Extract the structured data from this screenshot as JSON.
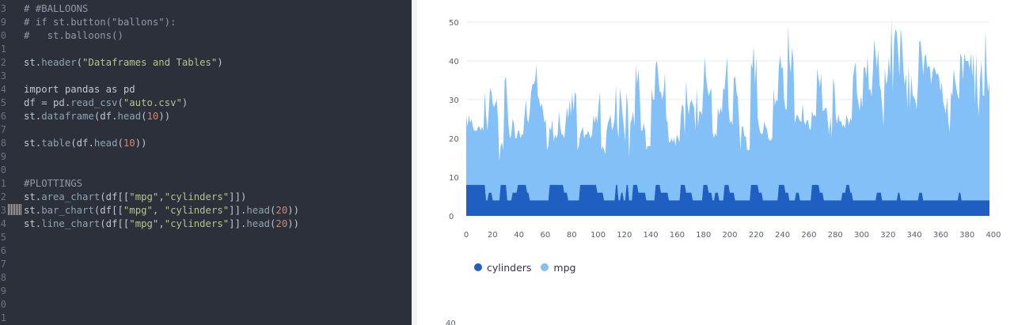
{
  "editor": {
    "line_numbers": [
      "3",
      "9",
      "0",
      "1",
      "2",
      "3",
      "4",
      "5",
      "6",
      "7",
      "8",
      "9",
      "0",
      "1",
      "2",
      "3",
      "4",
      "5",
      "6",
      "7",
      "8",
      "9",
      "0",
      "1"
    ],
    "lines": [
      [
        {
          "t": "# #BALLOONS",
          "c": "comment"
        }
      ],
      [
        {
          "t": "# if st.button(\"ballons\"):",
          "c": "comment"
        }
      ],
      [
        {
          "t": "#   st.balloons()",
          "c": "comment"
        }
      ],
      [],
      [
        {
          "t": "st.",
          "c": "plain"
        },
        {
          "t": "header",
          "c": "fn"
        },
        {
          "t": "(",
          "c": "plain"
        },
        {
          "t": "\"Dataframes and Tables\"",
          "c": "str"
        },
        {
          "t": ")",
          "c": "plain"
        }
      ],
      [],
      [
        {
          "t": "import pandas as pd",
          "c": "plain"
        }
      ],
      [
        {
          "t": "df = pd.",
          "c": "plain"
        },
        {
          "t": "read_csv",
          "c": "fn"
        },
        {
          "t": "(",
          "c": "plain"
        },
        {
          "t": "\"auto.csv\"",
          "c": "str"
        },
        {
          "t": ")",
          "c": "plain"
        }
      ],
      [
        {
          "t": "st.",
          "c": "plain"
        },
        {
          "t": "dataframe",
          "c": "fn"
        },
        {
          "t": "(df.",
          "c": "plain"
        },
        {
          "t": "head",
          "c": "fn"
        },
        {
          "t": "(",
          "c": "plain"
        },
        {
          "t": "10",
          "c": "num"
        },
        {
          "t": "))",
          "c": "plain"
        }
      ],
      [],
      [
        {
          "t": "st.",
          "c": "plain"
        },
        {
          "t": "table",
          "c": "fn"
        },
        {
          "t": "(df.",
          "c": "plain"
        },
        {
          "t": "head",
          "c": "fn"
        },
        {
          "t": "(",
          "c": "plain"
        },
        {
          "t": "10",
          "c": "num"
        },
        {
          "t": "))",
          "c": "plain"
        }
      ],
      [],
      [],
      [
        {
          "t": "#PLOTTINGS",
          "c": "comment"
        }
      ],
      [
        {
          "t": "st.",
          "c": "plain"
        },
        {
          "t": "area_chart",
          "c": "fn"
        },
        {
          "t": "(df[[",
          "c": "plain"
        },
        {
          "t": "\"mpg\"",
          "c": "str"
        },
        {
          "t": ",",
          "c": "plain"
        },
        {
          "t": "\"cylinders\"",
          "c": "str"
        },
        {
          "t": "]])",
          "c": "plain"
        }
      ],
      [
        {
          "t": "st.",
          "c": "plain"
        },
        {
          "t": "bar_chart",
          "c": "fn"
        },
        {
          "t": "(df[[",
          "c": "plain"
        },
        {
          "t": "\"mpg\"",
          "c": "str"
        },
        {
          "t": ", ",
          "c": "plain"
        },
        {
          "t": "\"cylinders\"",
          "c": "str"
        },
        {
          "t": "]].",
          "c": "plain"
        },
        {
          "t": "head",
          "c": "fn"
        },
        {
          "t": "(",
          "c": "plain"
        },
        {
          "t": "20",
          "c": "num"
        },
        {
          "t": "))",
          "c": "plain"
        }
      ],
      [
        {
          "t": "st.",
          "c": "plain"
        },
        {
          "t": "line_chart",
          "c": "fn"
        },
        {
          "t": "(df[[",
          "c": "plain"
        },
        {
          "t": "\"mpg\"",
          "c": "str"
        },
        {
          "t": ",",
          "c": "plain"
        },
        {
          "t": "\"cylinders\"",
          "c": "str"
        },
        {
          "t": "]].",
          "c": "plain"
        },
        {
          "t": "head",
          "c": "fn"
        },
        {
          "t": "(",
          "c": "plain"
        },
        {
          "t": "20",
          "c": "num"
        },
        {
          "t": "))",
          "c": "plain"
        }
      ]
    ]
  },
  "colors": {
    "cylinders": "#1f5fc2",
    "mpg": "#83c0f7",
    "gridline": "#e6e9ef"
  },
  "chart_data": {
    "type": "area",
    "stacked": true,
    "xlim": [
      0,
      397
    ],
    "ylim": [
      0,
      50
    ],
    "xticks": [
      0,
      20,
      40,
      60,
      80,
      100,
      120,
      140,
      160,
      180,
      200,
      220,
      240,
      260,
      280,
      300,
      320,
      340,
      360,
      380,
      400
    ],
    "yticks": [
      0,
      10,
      20,
      30,
      40,
      50
    ],
    "grid": true,
    "legend_position": "bottom-left",
    "series": [
      {
        "name": "cylinders",
        "key": "cylinders",
        "values": [
          8,
          8,
          8,
          8,
          8,
          8,
          8,
          8,
          8,
          8,
          8,
          8,
          8,
          8,
          8,
          4,
          4,
          6,
          6,
          6,
          4,
          4,
          4,
          4,
          4,
          4,
          8,
          8,
          8,
          8,
          8,
          4,
          4,
          4,
          4,
          6,
          6,
          6,
          6,
          8,
          8,
          8,
          8,
          8,
          8,
          8,
          6,
          6,
          4,
          4,
          4,
          4,
          4,
          4,
          4,
          4,
          4,
          4,
          4,
          4,
          4,
          4,
          4,
          8,
          8,
          8,
          8,
          8,
          8,
          8,
          8,
          8,
          8,
          8,
          6,
          6,
          6,
          4,
          4,
          4,
          4,
          4,
          4,
          4,
          4,
          4,
          8,
          8,
          8,
          8,
          8,
          8,
          8,
          8,
          8,
          8,
          8,
          8,
          8,
          6,
          6,
          6,
          6,
          6,
          4,
          4,
          4,
          4,
          4,
          4,
          4,
          4,
          4,
          8,
          8,
          4,
          4,
          6,
          6,
          4,
          4,
          8,
          8,
          4,
          4,
          4,
          8,
          8,
          8,
          8,
          6,
          6,
          6,
          6,
          6,
          6,
          4,
          4,
          4,
          4,
          4,
          4,
          4,
          8,
          8,
          8,
          8,
          6,
          6,
          6,
          6,
          6,
          6,
          4,
          4,
          4,
          4,
          4,
          4,
          4,
          4,
          4,
          8,
          8,
          8,
          8,
          6,
          6,
          6,
          6,
          6,
          4,
          4,
          4,
          4,
          4,
          4,
          4,
          4,
          8,
          8,
          8,
          8,
          6,
          6,
          6,
          4,
          4,
          6,
          6,
          6,
          4,
          4,
          4,
          4,
          8,
          8,
          8,
          8,
          6,
          6,
          6,
          6,
          4,
          4,
          4,
          4,
          4,
          4,
          4,
          4,
          4,
          4,
          4,
          4,
          8,
          8,
          8,
          8,
          8,
          8,
          6,
          6,
          6,
          4,
          4,
          4,
          4,
          4,
          4,
          4,
          4,
          4,
          4,
          4,
          4,
          8,
          8,
          8,
          8,
          8,
          6,
          6,
          6,
          4,
          4,
          4,
          4,
          4,
          6,
          6,
          6,
          4,
          4,
          4,
          4,
          4,
          4,
          4,
          4,
          4,
          8,
          8,
          8,
          8,
          8,
          8,
          6,
          6,
          6,
          4,
          4,
          4,
          4,
          4,
          4,
          4,
          4,
          4,
          4,
          4,
          4,
          4,
          4,
          6,
          6,
          6,
          8,
          8,
          8,
          6,
          6,
          4,
          4,
          4,
          4,
          4,
          4,
          4,
          4,
          4,
          4,
          4,
          4,
          4,
          4,
          4,
          4,
          4,
          4,
          6,
          6,
          6,
          6,
          4,
          4,
          4,
          4,
          4,
          4,
          4,
          4,
          4,
          4,
          4,
          4,
          6,
          6,
          4,
          4,
          4,
          4,
          4,
          4,
          4,
          4,
          4,
          4,
          4,
          4,
          4,
          4,
          6,
          6,
          6,
          4,
          4,
          4,
          4,
          4,
          4,
          4,
          4,
          4,
          4,
          4,
          4,
          4,
          4,
          4,
          4,
          4,
          4,
          4,
          4,
          4,
          4,
          4,
          4,
          4,
          4,
          4,
          6,
          6,
          4,
          4,
          4,
          4,
          4,
          4,
          4,
          4,
          4,
          4,
          4,
          4,
          4,
          4,
          4,
          4,
          4,
          4,
          4,
          4,
          4,
          4,
          4,
          4,
          4
        ]
      },
      {
        "name": "mpg",
        "key": "mpg",
        "values": [
          18,
          15,
          18,
          16,
          17,
          15,
          14,
          14,
          14,
          15,
          15,
          14,
          15,
          14,
          24,
          22,
          18,
          21,
          27,
          26,
          25,
          24,
          25,
          26,
          21,
          10,
          10,
          11,
          9,
          27,
          28,
          25,
          19,
          16,
          17,
          19,
          18,
          14,
          14,
          14,
          14,
          12,
          13,
          13,
          18,
          22,
          19,
          18,
          23,
          28,
          30,
          30,
          31,
          35,
          27,
          26,
          24,
          25,
          23,
          20,
          21,
          13,
          14,
          15,
          14,
          17,
          11,
          13,
          12,
          13,
          19,
          15,
          13,
          13,
          14,
          18,
          22,
          21,
          26,
          22,
          28,
          23,
          28,
          27,
          13,
          14,
          13,
          14,
          15,
          12,
          13,
          13,
          14,
          13,
          12,
          13,
          18,
          16,
          18,
          18,
          23,
          26,
          11,
          12,
          13,
          12,
          18,
          20,
          21,
          22,
          18,
          19,
          21,
          26,
          15,
          16,
          29,
          24,
          20,
          19,
          15,
          24,
          20,
          11,
          20,
          21,
          19,
          15,
          31,
          26,
          32,
          25,
          16,
          16,
          18,
          16,
          13,
          14,
          14,
          14,
          29,
          26,
          26,
          31,
          32,
          28,
          24,
          26,
          24,
          26,
          31,
          19,
          18,
          15,
          15,
          16,
          15,
          16,
          14,
          17,
          16,
          15,
          18,
          21,
          20,
          13,
          29,
          23,
          20,
          23,
          24,
          25,
          24,
          18,
          29,
          19,
          23,
          23,
          22,
          25,
          33,
          28,
          25,
          25,
          26,
          27,
          17.5,
          16,
          15.5,
          14.5,
          22,
          22,
          24,
          22.5,
          29,
          24.5,
          29,
          33,
          20,
          18,
          18.5,
          17.5,
          29.5,
          32,
          28,
          26.5,
          20,
          13,
          19,
          19,
          16.5,
          16.5,
          13,
          13,
          13,
          31.5,
          30,
          36,
          25.5,
          33.5,
          17.5,
          17,
          15.5,
          15,
          17.5,
          20.5,
          19,
          18.5,
          16,
          15.5,
          15.5,
          16,
          29,
          24.5,
          26,
          25.5,
          30.5,
          33.5,
          30,
          30.5,
          22,
          21.5,
          21.5,
          43.1,
          36.1,
          32.8,
          39.4,
          36.1,
          19.9,
          19.4,
          20.2,
          19.2,
          20.5,
          20.2,
          25.1,
          20.5,
          19.4,
          20.6,
          20.8,
          18.6,
          18.1,
          19.2,
          17.7,
          18.1,
          17.5,
          30,
          27.5,
          27.2,
          30.9,
          21.1,
          23.2,
          23.8,
          23.9,
          20.3,
          17,
          21.6,
          16.2,
          31.5,
          29.5,
          21.5,
          19.8,
          22.3,
          20.2,
          20.6,
          17,
          17.6,
          16.5,
          18.2,
          16.9,
          15.5,
          19.2,
          18.5,
          31.9,
          34.1,
          35.7,
          27.4,
          25.4,
          23,
          27.2,
          23.9,
          34.2,
          34.5,
          31.8,
          37.3,
          28.4,
          28.8,
          26.8,
          33.5,
          41.5,
          38.1,
          32.1,
          37.2,
          28,
          26.4,
          24.3,
          19.1,
          34.3,
          29.8,
          31.3,
          37,
          32.2,
          46.6,
          27.9,
          40.8,
          44.3,
          43.4,
          36.4,
          30,
          44.6,
          40.9,
          33.8,
          29.8,
          32.7,
          23.7,
          35,
          23.6,
          32.4,
          27.2,
          26.6,
          25.8,
          23.5,
          30,
          39.1,
          39,
          35.1,
          32.3,
          37,
          37.7,
          34.1,
          34.7,
          34.4,
          29.9,
          33,
          34.5,
          33.7,
          32.4,
          32.9,
          31.6,
          28.1,
          30.7,
          25.4,
          24.2,
          22.4,
          26.6,
          20.2,
          17.6,
          28,
          27,
          34,
          31,
          29,
          27,
          24,
          36,
          37,
          31,
          38,
          36,
          36,
          36,
          34,
          38,
          32,
          38,
          25,
          38,
          26,
          22,
          32,
          36,
          27,
          27,
          44,
          32,
          28,
          31
        ]
      }
    ]
  }
}
